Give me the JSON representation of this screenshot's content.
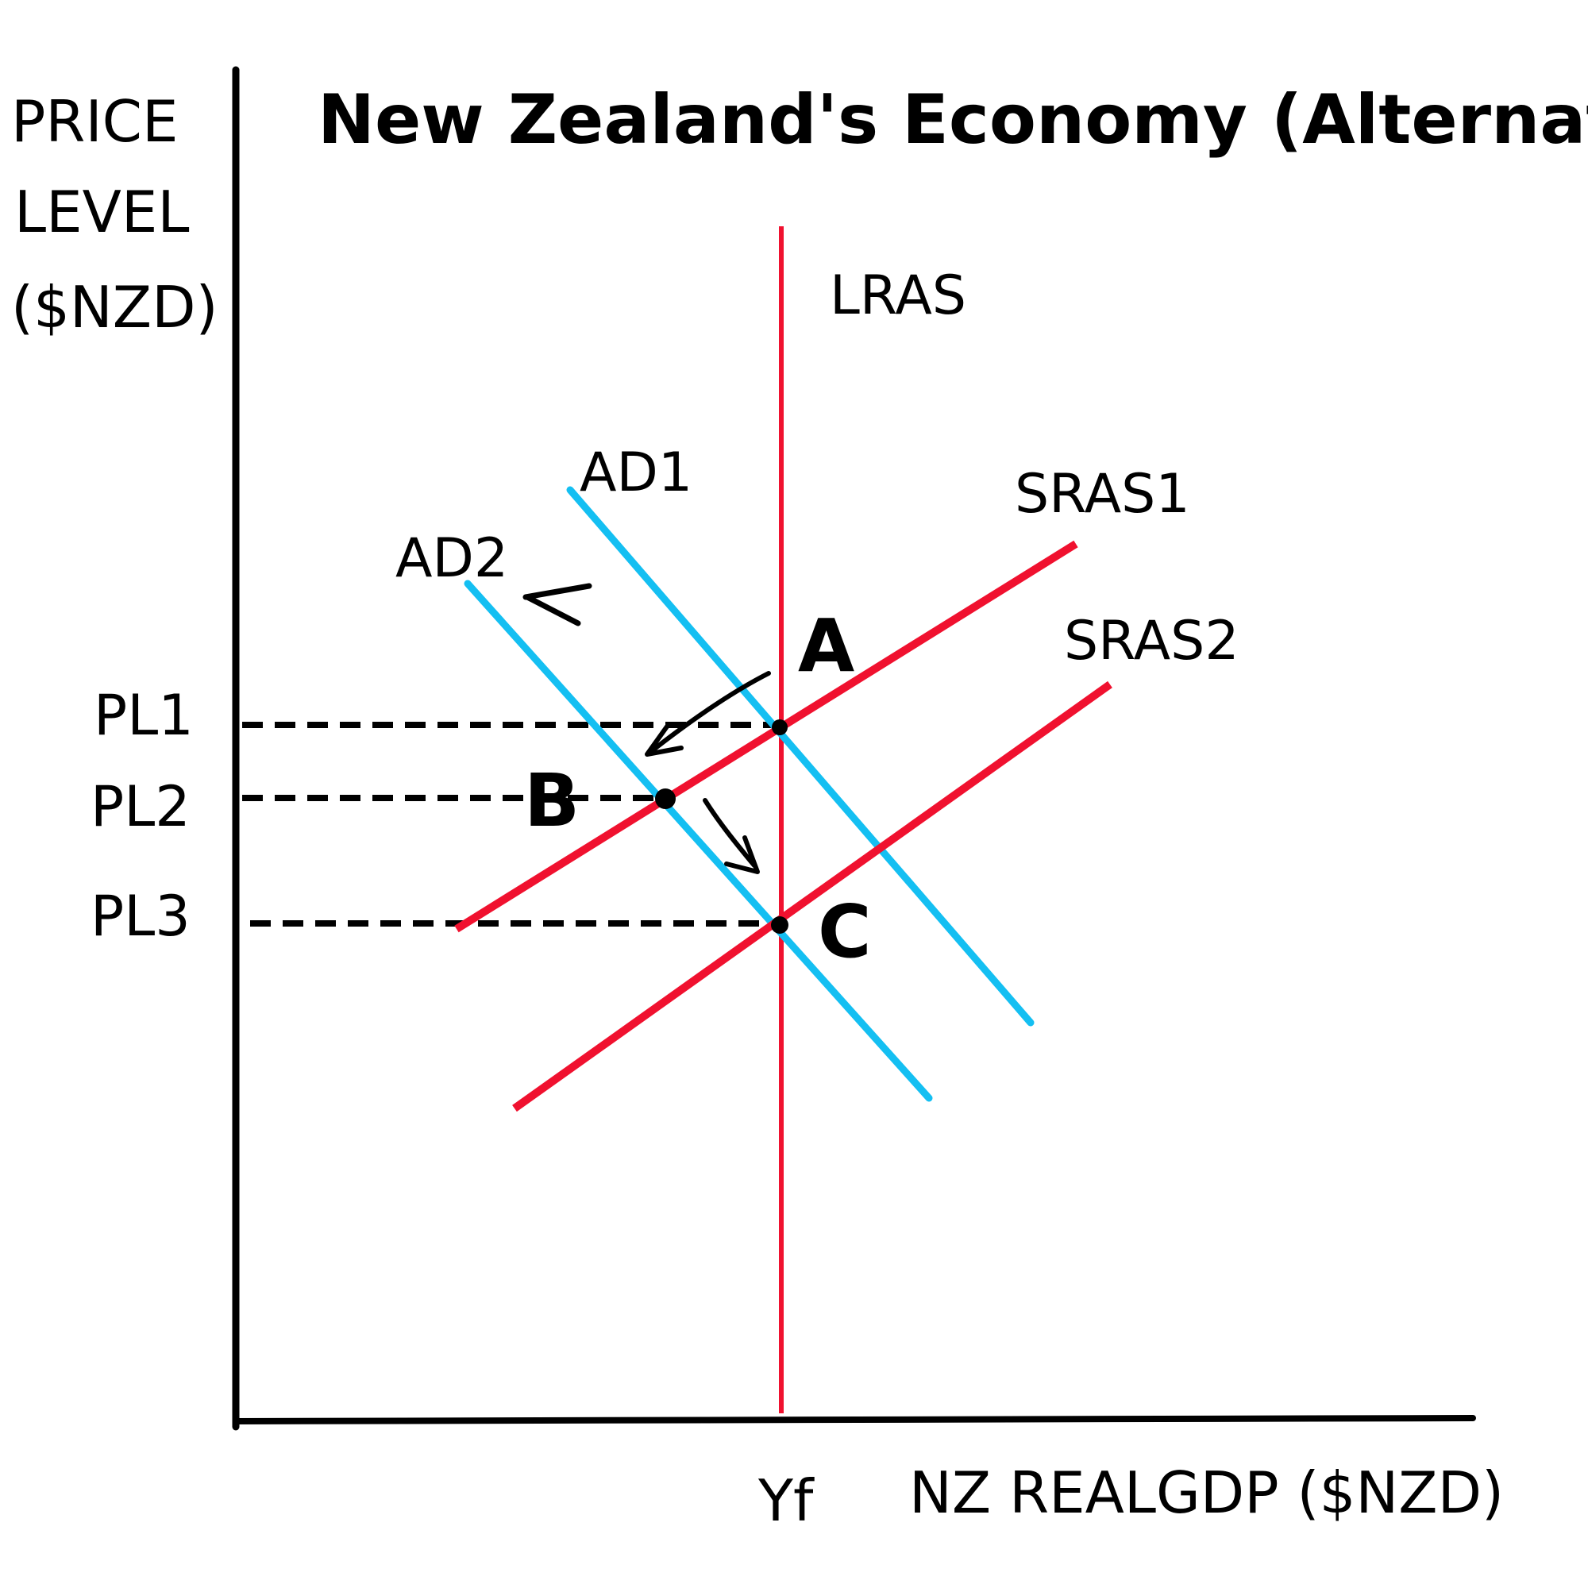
{
  "title": "New Zealand's Economy (Alternative)",
  "y_axis_label": [
    "PRICE",
    "LEVEL",
    "($NZD)"
  ],
  "x_axis_label": "NZ REALGDP ($NZD)",
  "x_marker": "Yf",
  "curves": {
    "lras": "LRAS",
    "ad1": "AD1",
    "ad2": "AD2",
    "sras1": "SRAS1",
    "sras2": "SRAS2"
  },
  "price_levels": [
    "PL1",
    "PL2",
    "PL3"
  ],
  "points": [
    "A",
    "B",
    "C"
  ],
  "colors": {
    "supply": "#f0112f",
    "demand": "#14bff2",
    "ink": "#000000"
  }
}
